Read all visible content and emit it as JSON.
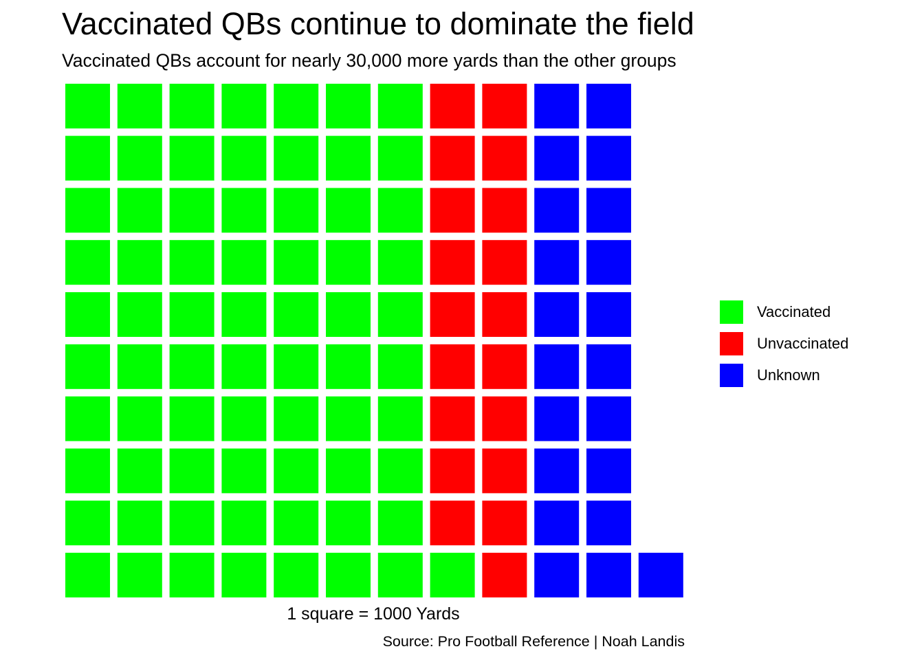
{
  "title": "Vaccinated QBs continue to dominate the field",
  "subtitle": "Vaccinated QBs account for nearly 30,000 more yards than the other groups",
  "x_caption": "1 square = 1000 Yards",
  "caption": "Source: Pro Football Reference | Noah Landis",
  "legend": {
    "placement": "right",
    "items": [
      {
        "label": "Vaccinated",
        "color": "#00ff00"
      },
      {
        "label": "Unvaccinated",
        "color": "#ff0000"
      },
      {
        "label": "Unknown",
        "color": "#0000ff"
      }
    ]
  },
  "chart_data": {
    "type": "waffle",
    "unit": "1 square = 1000 Yards",
    "rows": 10,
    "fill_order": "column-wise, bottom to top, left to right",
    "categories": [
      "Vaccinated",
      "Unvaccinated",
      "Unknown"
    ],
    "values": [
      71,
      19,
      21
    ],
    "colors": [
      "#00ff00",
      "#ff0000",
      "#0000ff"
    ],
    "grid": false,
    "axes": false
  }
}
